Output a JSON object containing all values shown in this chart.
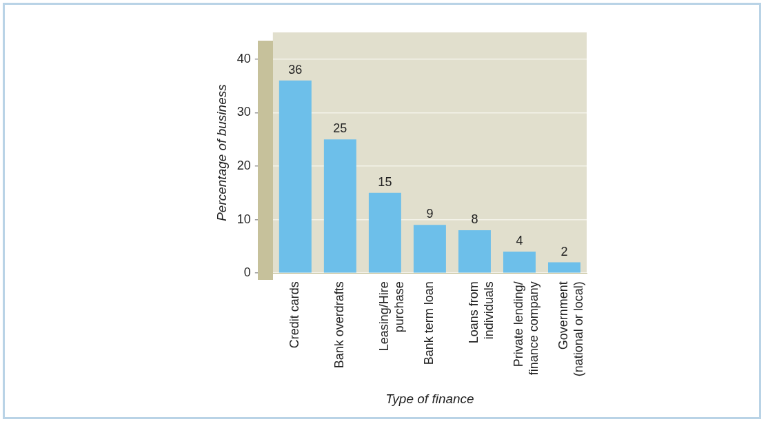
{
  "chart_data": {
    "type": "bar",
    "xlabel": "Type of finance",
    "ylabel": "Percentage of business",
    "categories": [
      "Credit cards",
      "Bank overdrafts",
      "Leasing/Hire purchase",
      "Bank term loan",
      "Loans from individuals",
      "Private lending/ finance company",
      "Government (national or local)"
    ],
    "values": [
      36,
      25,
      15,
      9,
      8,
      4,
      2
    ],
    "color": "#6dbfea",
    "ylim": [
      0,
      45
    ],
    "yticks": [
      0,
      10,
      20,
      30,
      40
    ],
    "grid": "y",
    "data_labels": true,
    "legend": false
  }
}
